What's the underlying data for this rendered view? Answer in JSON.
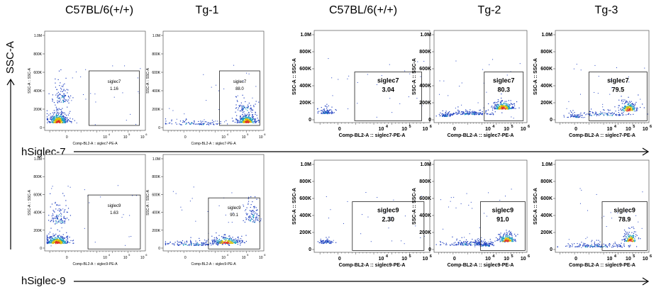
{
  "columns": [
    "C57BL/6(+/+)",
    "Tg-1",
    "C57BL/6(+/+)",
    "Tg-2",
    "Tg-3"
  ],
  "row_labels": {
    "row1": "hSiglec-7",
    "row2": "hSiglec-9"
  },
  "side_label": "SSC-A",
  "axis_y_title": "SSC-A :: SSC-A",
  "y_ticks": [
    "1.0M",
    "800K",
    "600K",
    "400K",
    "200K",
    "0"
  ],
  "x_ticks_zero": "0",
  "x_tick_base": "10",
  "x_tick_exps": [
    "4",
    "5",
    "6"
  ],
  "x_titles": {
    "row1": "Comp-BL2-A :: siglec7-PE-A",
    "row2": "Comp-BL2-A :: siglec9-PE-A"
  },
  "colors": {
    "dots": "#2040c0",
    "dense": "#1aa0c0",
    "core": "#d6c000",
    "hot": "#e03020"
  },
  "chart_data": [
    {
      "type": "scatter",
      "column": "C57BL/6(+/+)",
      "marker": "hSiglec-7",
      "gate_name": "siglec7",
      "gate_percent": "1.16"
    },
    {
      "type": "scatter",
      "column": "Tg-1",
      "marker": "hSiglec-7",
      "gate_name": "siglec7",
      "gate_percent": "88.0"
    },
    {
      "type": "scatter",
      "column": "C57BL/6(+/+)",
      "marker": "hSiglec-7",
      "gate_name": "siglec7",
      "gate_percent": "3.04"
    },
    {
      "type": "scatter",
      "column": "Tg-2",
      "marker": "hSiglec-7",
      "gate_name": "siglec7",
      "gate_percent": "80.3"
    },
    {
      "type": "scatter",
      "column": "Tg-3",
      "marker": "hSiglec-7",
      "gate_name": "siglec7",
      "gate_percent": "79.5"
    },
    {
      "type": "scatter",
      "column": "C57BL/6(+/+)",
      "marker": "hSiglec-9",
      "gate_name": "siglec9",
      "gate_percent": "1.63"
    },
    {
      "type": "scatter",
      "column": "Tg-1",
      "marker": "hSiglec-9",
      "gate_name": "siglec9",
      "gate_percent": "90.1"
    },
    {
      "type": "scatter",
      "column": "C57BL/6(+/+)",
      "marker": "hSiglec-9",
      "gate_name": "siglec9",
      "gate_percent": "2.30"
    },
    {
      "type": "scatter",
      "column": "Tg-2",
      "marker": "hSiglec-9",
      "gate_name": "siglec9",
      "gate_percent": "91.0"
    },
    {
      "type": "scatter",
      "column": "Tg-3",
      "marker": "hSiglec-9",
      "gate_name": "siglec9",
      "gate_percent": "78.9"
    }
  ]
}
